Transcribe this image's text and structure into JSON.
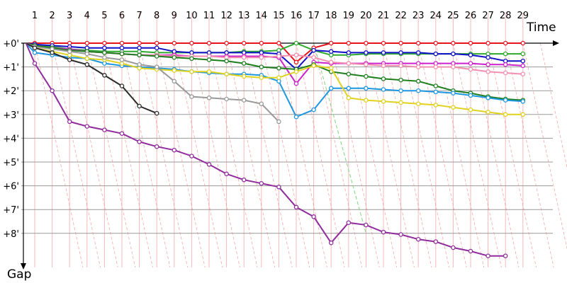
{
  "chart_data": {
    "type": "line",
    "x_axis_label": "Time",
    "y_axis_label": "Gap",
    "x_ticks": [
      1,
      2,
      3,
      4,
      5,
      6,
      7,
      8,
      9,
      10,
      11,
      12,
      13,
      14,
      15,
      16,
      17,
      18,
      19,
      20,
      21,
      22,
      23,
      24,
      25,
      26,
      27,
      28,
      29
    ],
    "y_ticks": [
      "+0'",
      "+1'",
      "+2'",
      "+3'",
      "+4'",
      "+5'",
      "+6'",
      "+7'",
      "+8'"
    ],
    "y_range_minutes": [
      0,
      9.2
    ],
    "grid": "on",
    "colors": {
      "vertical_grid": "#f4b9b9",
      "horizontal_grid": "#9a9a9a",
      "lap_lines": "#f08a8a",
      "lead_line": "#7ed67e"
    },
    "series": [
      {
        "color": "#e8141e",
        "points": [
          [
            0.5,
            0
          ],
          [
            1,
            0
          ],
          [
            2,
            0
          ],
          [
            3,
            0
          ],
          [
            4,
            0
          ],
          [
            5,
            0
          ],
          [
            6,
            0
          ],
          [
            7,
            0
          ],
          [
            8,
            0
          ],
          [
            9,
            0
          ],
          [
            10,
            0
          ],
          [
            11,
            0
          ],
          [
            12,
            0
          ],
          [
            13,
            0
          ],
          [
            14,
            0
          ],
          [
            15,
            0
          ],
          [
            16,
            0.8
          ],
          [
            17,
            0.2
          ],
          [
            18,
            0
          ],
          [
            19,
            0
          ],
          [
            20,
            0
          ],
          [
            21,
            0
          ],
          [
            22,
            0
          ],
          [
            23,
            0
          ],
          [
            24,
            0
          ],
          [
            25,
            0
          ],
          [
            26,
            0
          ],
          [
            27,
            0
          ],
          [
            28,
            0
          ],
          [
            29,
            0
          ]
        ]
      },
      {
        "color": "#2eaa2e",
        "points": [
          [
            0.5,
            0
          ],
          [
            1,
            0.1
          ],
          [
            2,
            0.15
          ],
          [
            3,
            0.25
          ],
          [
            4,
            0.3
          ],
          [
            5,
            0.35
          ],
          [
            6,
            0.35
          ],
          [
            7,
            0.35
          ],
          [
            8,
            0.4
          ],
          [
            9,
            0.4
          ],
          [
            10,
            0.4
          ],
          [
            11,
            0.4
          ],
          [
            12,
            0.4
          ],
          [
            13,
            0.35
          ],
          [
            14,
            0.35
          ],
          [
            15,
            0.3
          ],
          [
            16,
            0
          ],
          [
            17,
            0.3
          ],
          [
            18,
            0.5
          ],
          [
            19,
            0.5
          ],
          [
            20,
            0.45
          ],
          [
            21,
            0.45
          ],
          [
            22,
            0.45
          ],
          [
            23,
            0.45
          ],
          [
            24,
            0.45
          ],
          [
            25,
            0.45
          ],
          [
            26,
            0.45
          ],
          [
            27,
            0.45
          ],
          [
            28,
            0.45
          ],
          [
            29,
            0.45
          ]
        ]
      },
      {
        "color": "#1010c8",
        "points": [
          [
            0.5,
            0
          ],
          [
            1,
            0.05
          ],
          [
            2,
            0.1
          ],
          [
            3,
            0.15
          ],
          [
            4,
            0.2
          ],
          [
            5,
            0.2
          ],
          [
            6,
            0.2
          ],
          [
            7,
            0.2
          ],
          [
            8,
            0.2
          ],
          [
            9,
            0.35
          ],
          [
            10,
            0.4
          ],
          [
            11,
            0.4
          ],
          [
            12,
            0.4
          ],
          [
            13,
            0.4
          ],
          [
            14,
            0.4
          ],
          [
            15,
            0.45
          ],
          [
            16,
            1.1
          ],
          [
            17,
            0.3
          ],
          [
            18,
            0.35
          ],
          [
            19,
            0.4
          ],
          [
            20,
            0.4
          ],
          [
            21,
            0.4
          ],
          [
            22,
            0.4
          ],
          [
            23,
            0.4
          ],
          [
            24,
            0.45
          ],
          [
            25,
            0.45
          ],
          [
            26,
            0.5
          ],
          [
            27,
            0.6
          ],
          [
            28,
            0.75
          ],
          [
            29,
            0.75
          ]
        ]
      },
      {
        "color": "#cc22cc",
        "points": [
          [
            0.5,
            0
          ],
          [
            1,
            0.1
          ],
          [
            2,
            0.2
          ],
          [
            3,
            0.25
          ],
          [
            4,
            0.35
          ],
          [
            5,
            0.4
          ],
          [
            6,
            0.45
          ],
          [
            7,
            0.5
          ],
          [
            8,
            0.5
          ],
          [
            9,
            0.5
          ],
          [
            10,
            0.55
          ],
          [
            11,
            0.55
          ],
          [
            12,
            0.55
          ],
          [
            13,
            0.55
          ],
          [
            14,
            0.55
          ],
          [
            15,
            0.6
          ],
          [
            16,
            1.7
          ],
          [
            17,
            0.8
          ],
          [
            18,
            0.85
          ],
          [
            19,
            0.85
          ],
          [
            20,
            0.85
          ],
          [
            21,
            0.85
          ],
          [
            22,
            0.85
          ],
          [
            23,
            0.85
          ],
          [
            24,
            0.85
          ],
          [
            25,
            0.85
          ],
          [
            26,
            0.85
          ],
          [
            27,
            0.9
          ],
          [
            28,
            0.9
          ],
          [
            29,
            0.95
          ]
        ]
      },
      {
        "color": "#f28fb0",
        "points": [
          [
            0.5,
            0
          ],
          [
            1,
            0.1
          ],
          [
            2,
            0.2
          ],
          [
            3,
            0.3
          ],
          [
            4,
            0.35
          ],
          [
            5,
            0.4
          ],
          [
            6,
            0.45
          ],
          [
            7,
            0.5
          ],
          [
            8,
            0.5
          ],
          [
            9,
            0.55
          ],
          [
            10,
            0.55
          ],
          [
            11,
            0.55
          ],
          [
            12,
            0.6
          ],
          [
            13,
            0.6
          ],
          [
            14,
            0.6
          ],
          [
            15,
            0.55
          ],
          [
            16,
            0.5
          ],
          [
            17,
            0.6
          ],
          [
            18,
            0.8
          ],
          [
            19,
            0.85
          ],
          [
            20,
            0.9
          ],
          [
            21,
            0.95
          ],
          [
            22,
            0.95
          ],
          [
            23,
            1.0
          ],
          [
            24,
            1.0
          ],
          [
            25,
            1.0
          ],
          [
            26,
            1.1
          ],
          [
            27,
            1.2
          ],
          [
            28,
            1.25
          ],
          [
            29,
            1.3
          ]
        ]
      },
      {
        "color": "#1f7f1f",
        "points": [
          [
            0.5,
            0
          ],
          [
            1,
            0.1
          ],
          [
            2,
            0.2
          ],
          [
            3,
            0.3
          ],
          [
            4,
            0.35
          ],
          [
            5,
            0.4
          ],
          [
            6,
            0.45
          ],
          [
            7,
            0.5
          ],
          [
            8,
            0.55
          ],
          [
            9,
            0.6
          ],
          [
            10,
            0.65
          ],
          [
            11,
            0.7
          ],
          [
            12,
            0.75
          ],
          [
            13,
            0.85
          ],
          [
            14,
            1.0
          ],
          [
            15,
            1.05
          ],
          [
            16,
            1.1
          ],
          [
            17,
            0.9
          ],
          [
            18,
            1.2
          ],
          [
            19,
            1.3
          ],
          [
            20,
            1.4
          ],
          [
            21,
            1.5
          ],
          [
            22,
            1.55
          ],
          [
            23,
            1.6
          ],
          [
            24,
            1.8
          ],
          [
            25,
            2.0
          ],
          [
            26,
            2.1
          ],
          [
            27,
            2.25
          ],
          [
            28,
            2.35
          ],
          [
            29,
            2.4
          ]
        ]
      },
      {
        "color": "#1e96e0",
        "points": [
          [
            0.5,
            0
          ],
          [
            1,
            0.4
          ],
          [
            2,
            0.5
          ],
          [
            3,
            0.6
          ],
          [
            4,
            0.65
          ],
          [
            5,
            0.85
          ],
          [
            6,
            0.95
          ],
          [
            7,
            1.0
          ],
          [
            8,
            1.05
          ],
          [
            9,
            1.1
          ],
          [
            10,
            1.2
          ],
          [
            11,
            1.25
          ],
          [
            12,
            1.3
          ],
          [
            13,
            1.3
          ],
          [
            14,
            1.35
          ],
          [
            15,
            1.6
          ],
          [
            16,
            3.1
          ],
          [
            17,
            2.8
          ],
          [
            18,
            1.9
          ],
          [
            19,
            1.9
          ],
          [
            20,
            1.9
          ],
          [
            21,
            1.95
          ],
          [
            22,
            2.0
          ],
          [
            23,
            2.0
          ],
          [
            24,
            2.05
          ],
          [
            25,
            2.1
          ],
          [
            26,
            2.2
          ],
          [
            27,
            2.3
          ],
          [
            28,
            2.4
          ],
          [
            29,
            2.45
          ]
        ]
      },
      {
        "color": "#e0d21e",
        "points": [
          [
            0.5,
            0
          ],
          [
            1,
            0.2
          ],
          [
            2,
            0.35
          ],
          [
            3,
            0.5
          ],
          [
            4,
            0.65
          ],
          [
            5,
            0.7
          ],
          [
            6,
            0.85
          ],
          [
            7,
            1.05
          ],
          [
            8,
            1.1
          ],
          [
            9,
            1.15
          ],
          [
            10,
            1.2
          ],
          [
            11,
            1.2
          ],
          [
            12,
            1.3
          ],
          [
            13,
            1.4
          ],
          [
            14,
            1.45
          ],
          [
            15,
            1.45
          ],
          [
            16,
            1.2
          ],
          [
            17,
            0.95
          ],
          [
            18,
            1.05
          ],
          [
            19,
            2.3
          ],
          [
            20,
            2.4
          ],
          [
            21,
            2.45
          ],
          [
            22,
            2.5
          ],
          [
            23,
            2.55
          ],
          [
            24,
            2.6
          ],
          [
            25,
            2.7
          ],
          [
            26,
            2.8
          ],
          [
            27,
            2.9
          ],
          [
            28,
            3.0
          ],
          [
            29,
            3.0
          ]
        ]
      },
      {
        "color": "#999999",
        "points": [
          [
            0.5,
            0
          ],
          [
            1,
            0.15
          ],
          [
            2,
            0.25
          ],
          [
            3,
            0.35
          ],
          [
            4,
            0.45
          ],
          [
            5,
            0.6
          ],
          [
            6,
            0.7
          ],
          [
            7,
            0.9
          ],
          [
            8,
            1.0
          ],
          [
            9,
            1.6
          ],
          [
            10,
            2.25
          ],
          [
            11,
            2.3
          ],
          [
            12,
            2.35
          ],
          [
            13,
            2.4
          ],
          [
            14,
            2.55
          ],
          [
            15,
            3.3
          ]
        ]
      },
      {
        "color": "#2a2a2a",
        "points": [
          [
            0.5,
            0
          ],
          [
            1,
            0.2
          ],
          [
            2,
            0.4
          ],
          [
            3,
            0.7
          ],
          [
            4,
            0.9
          ],
          [
            5,
            1.35
          ],
          [
            6,
            1.8
          ],
          [
            7,
            2.65
          ],
          [
            8,
            2.95
          ]
        ]
      },
      {
        "color": "#902c9c",
        "points": [
          [
            0.5,
            0
          ],
          [
            1,
            0.85
          ],
          [
            2,
            2.0
          ],
          [
            3,
            3.3
          ],
          [
            4,
            3.5
          ],
          [
            5,
            3.65
          ],
          [
            6,
            3.8
          ],
          [
            7,
            4.15
          ],
          [
            8,
            4.35
          ],
          [
            9,
            4.5
          ],
          [
            10,
            4.75
          ],
          [
            11,
            5.1
          ],
          [
            12,
            5.5
          ],
          [
            13,
            5.75
          ],
          [
            14,
            5.9
          ],
          [
            15,
            6.05
          ],
          [
            16,
            6.9
          ],
          [
            17,
            7.3
          ],
          [
            18,
            8.4
          ],
          [
            19,
            7.55
          ],
          [
            20,
            7.65
          ],
          [
            21,
            7.95
          ],
          [
            22,
            8.05
          ],
          [
            23,
            8.25
          ],
          [
            24,
            8.35
          ],
          [
            25,
            8.6
          ],
          [
            26,
            8.75
          ],
          [
            27,
            8.95
          ],
          [
            28,
            8.95
          ]
        ]
      }
    ]
  }
}
